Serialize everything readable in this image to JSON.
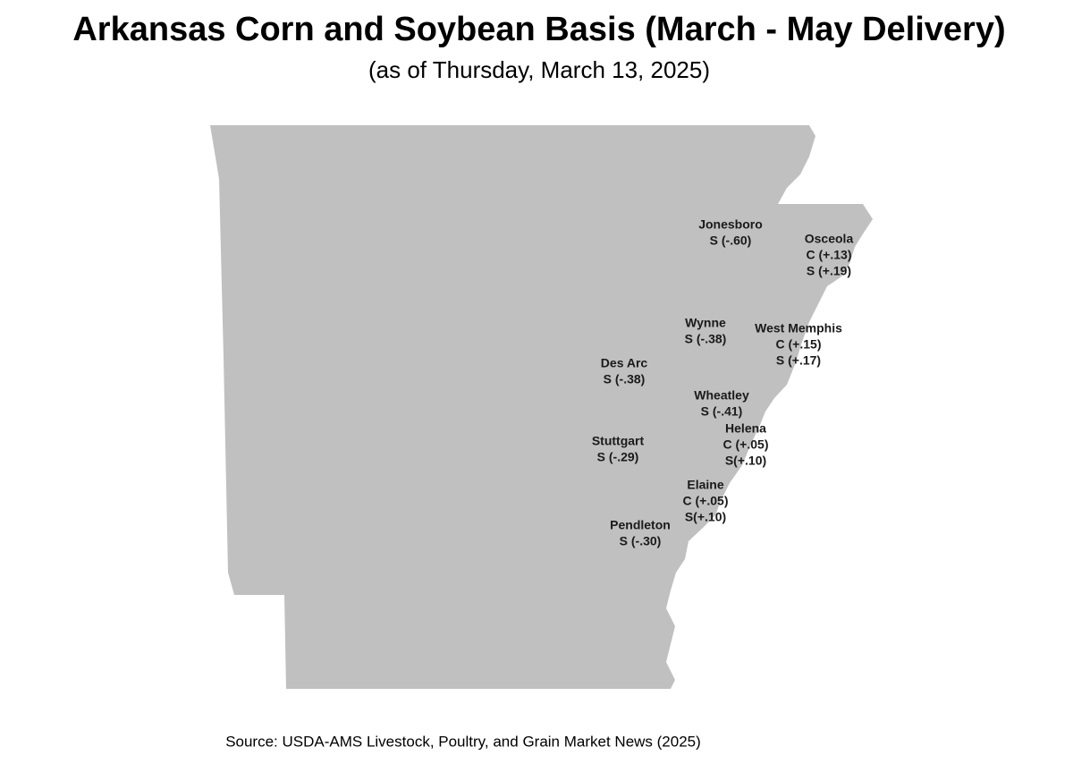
{
  "header": {
    "title": "Arkansas Corn and Soybean Basis (March - May Delivery)",
    "subtitle": "(as of Thursday, March 13, 2025)"
  },
  "locations": [
    {
      "name": "Jonesboro",
      "lines": [
        "S (-.60)"
      ]
    },
    {
      "name": "Osceola",
      "lines": [
        "C (+.13)",
        "S (+.19)"
      ]
    },
    {
      "name": "Wynne",
      "lines": [
        "S (-.38)"
      ]
    },
    {
      "name": "West Memphis",
      "lines": [
        "C (+.15)",
        "S (+.17)"
      ]
    },
    {
      "name": "Des Arc",
      "lines": [
        "S (-.38)"
      ]
    },
    {
      "name": "Wheatley",
      "lines": [
        "S (-.41)"
      ]
    },
    {
      "name": "Helena",
      "lines": [
        "C (+.05)",
        "S(+.10)"
      ]
    },
    {
      "name": "Stuttgart",
      "lines": [
        "S (-.29)"
      ]
    },
    {
      "name": "Elaine",
      "lines": [
        "C (+.05)",
        "S(+.10)"
      ]
    },
    {
      "name": "Pendleton",
      "lines": [
        "S (-.30)"
      ]
    }
  ],
  "footer": {
    "source": "Source: USDA-AMS Livestock, Poultry, and Grain Market News (2025)"
  }
}
